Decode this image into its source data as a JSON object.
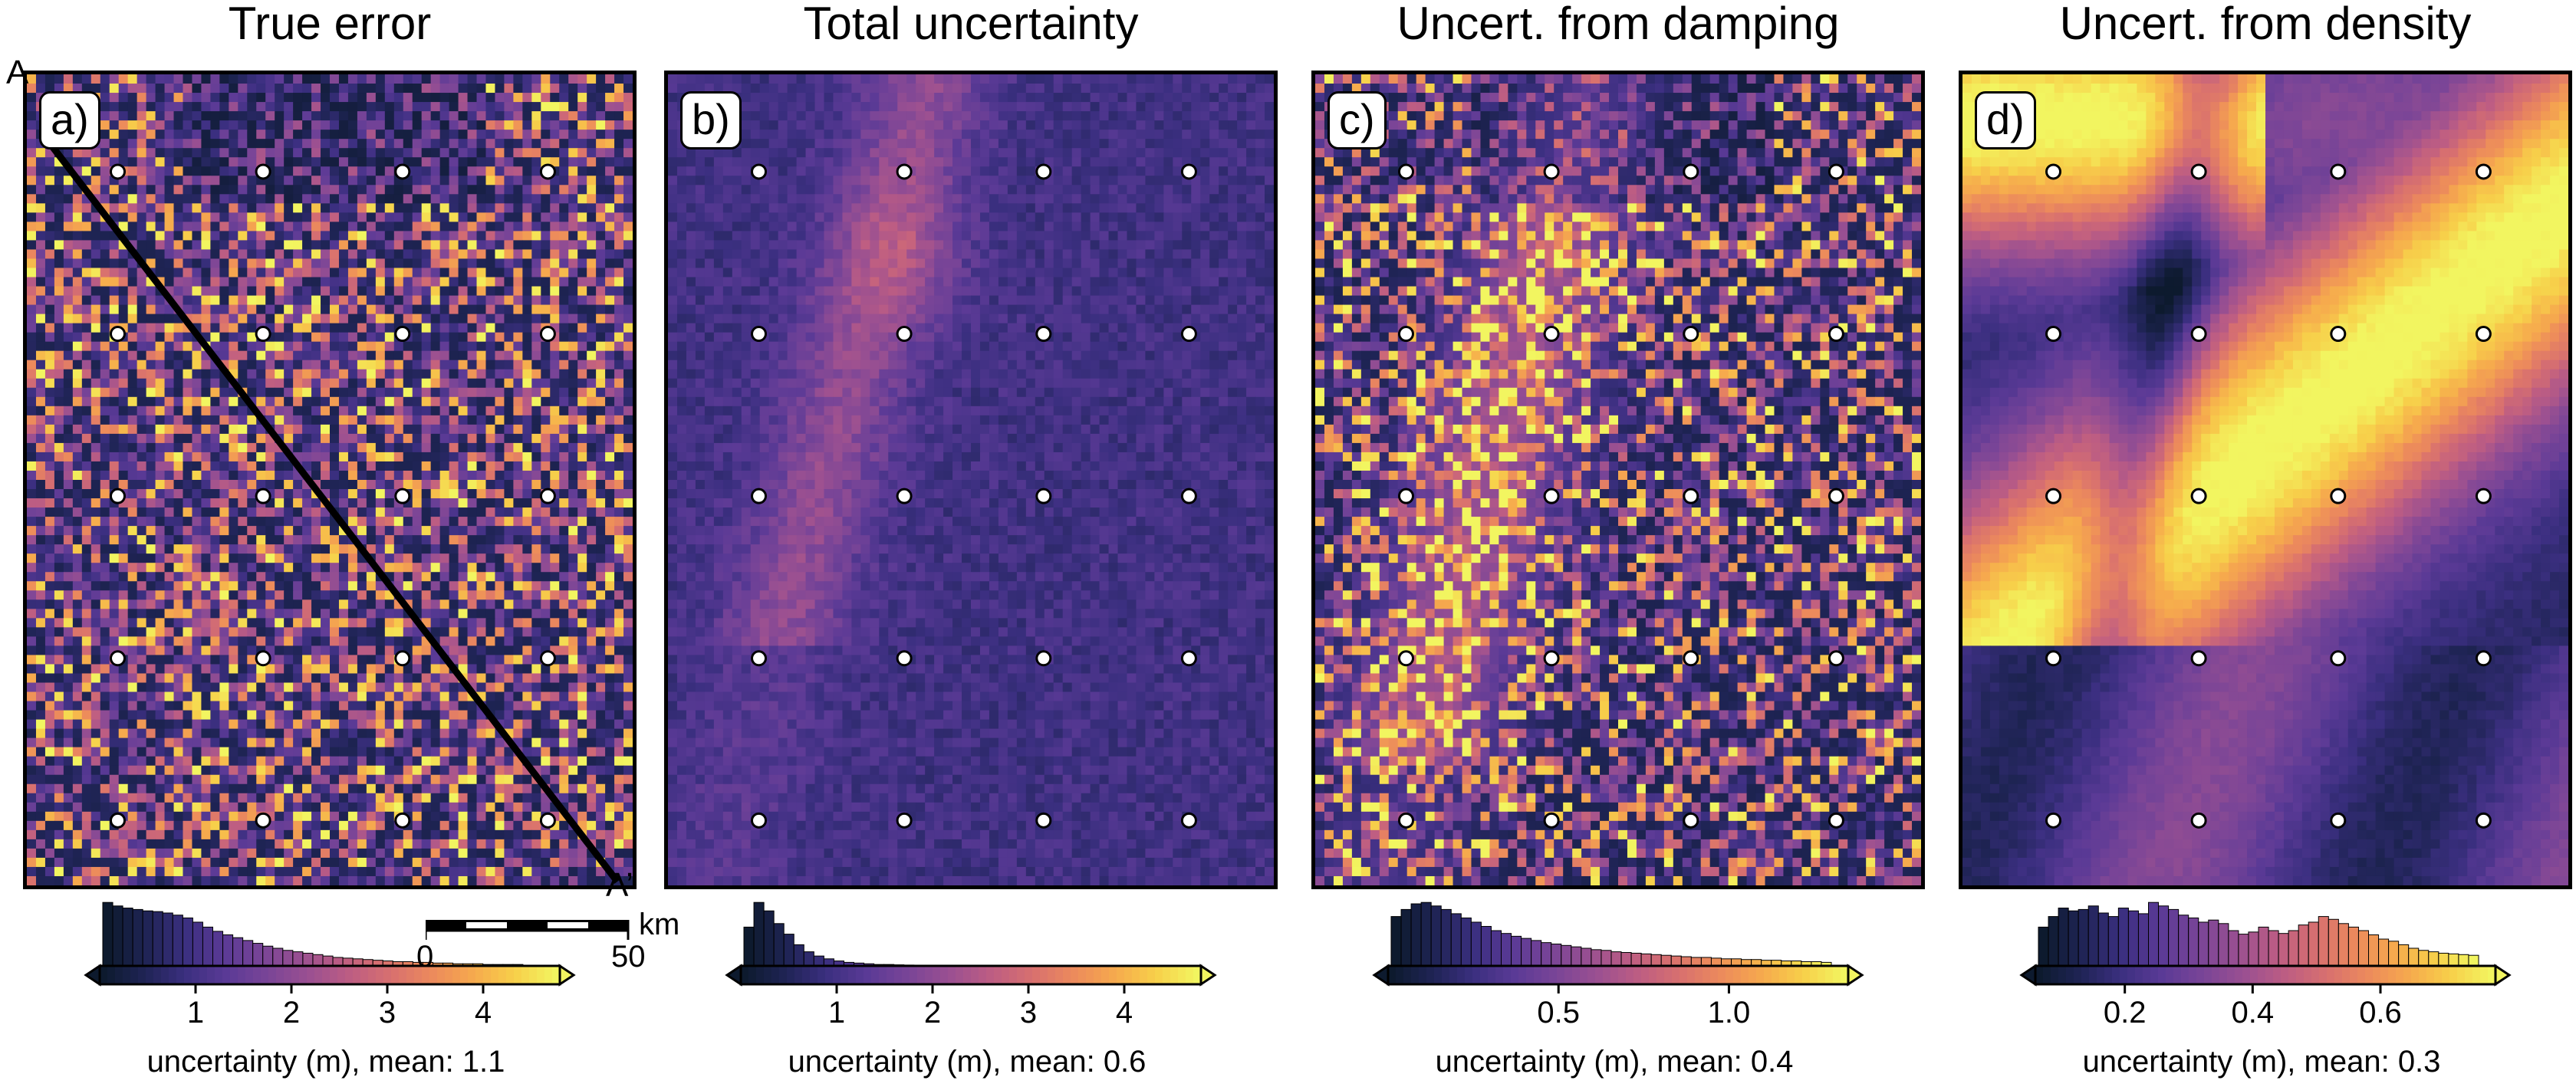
{
  "panels": [
    {
      "title": "True error",
      "tag": "a)",
      "colorbar_label": "uncertainty (m), mean: 1.1",
      "ticks": [
        "1",
        "2",
        "3",
        "4"
      ],
      "tick_values": [
        1,
        2,
        3,
        4
      ],
      "range": [
        0,
        4.8
      ],
      "seed": 11,
      "style": "noise",
      "hist": [
        0.9,
        0.85,
        0.82,
        0.8,
        0.78,
        0.77,
        0.75,
        0.72,
        0.68,
        0.62,
        0.55,
        0.49,
        0.44,
        0.4,
        0.36,
        0.32,
        0.28,
        0.25,
        0.22,
        0.2,
        0.18,
        0.16,
        0.14,
        0.12,
        0.11,
        0.1,
        0.09,
        0.08,
        0.07,
        0.06,
        0.06,
        0.05,
        0.05,
        0.04,
        0.04,
        0.03,
        0.03,
        0.03,
        0.02,
        0.02,
        0.02,
        0.02,
        0.01,
        0.01
      ]
    },
    {
      "title": "Total uncertainty",
      "tag": "b)",
      "colorbar_label": "uncertainty (m), mean: 0.6",
      "ticks": [
        "1",
        "2",
        "3",
        "4"
      ],
      "tick_values": [
        1,
        2,
        3,
        4
      ],
      "range": [
        0,
        4.8
      ],
      "seed": 23,
      "style": "smooth-noise",
      "hist": [
        0.55,
        0.9,
        0.78,
        0.6,
        0.45,
        0.3,
        0.2,
        0.14,
        0.1,
        0.07,
        0.05,
        0.04,
        0.03,
        0.02,
        0.02,
        0.015,
        0.012,
        0.01,
        0.01,
        0.008,
        0.007,
        0.006,
        0.005,
        0.004,
        0.004,
        0.003,
        0.003,
        0.002,
        0.002,
        0.002,
        0.002,
        0.001,
        0.001,
        0.001,
        0.001,
        0.001,
        0.001,
        0.001,
        0.001,
        0.001,
        0.001,
        0.001,
        0.001,
        0.001
      ]
    },
    {
      "title": "Uncert. from damping",
      "tag": "c)",
      "colorbar_label": "uncertainty (m), mean: 0.4",
      "ticks": [
        "0.5",
        "1.0"
      ],
      "tick_values": [
        0.5,
        1.0
      ],
      "range": [
        0,
        1.35
      ],
      "seed": 37,
      "style": "noise",
      "hist": [
        0.7,
        0.8,
        0.88,
        0.9,
        0.85,
        0.8,
        0.74,
        0.68,
        0.62,
        0.56,
        0.5,
        0.46,
        0.42,
        0.39,
        0.36,
        0.33,
        0.31,
        0.29,
        0.27,
        0.25,
        0.23,
        0.22,
        0.2,
        0.19,
        0.18,
        0.17,
        0.16,
        0.15,
        0.14,
        0.13,
        0.12,
        0.12,
        0.11,
        0.1,
        0.1,
        0.09,
        0.09,
        0.08,
        0.08,
        0.07,
        0.07,
        0.06,
        0.06,
        0.05
      ]
    },
    {
      "title": "Uncert. from density",
      "tag": "d)",
      "colorbar_label": "uncertainty (m), mean: 0.3",
      "ticks": [
        "0.2",
        "0.4",
        "0.6"
      ],
      "tick_values": [
        0.2,
        0.4,
        0.6
      ],
      "range": [
        0.06,
        0.78
      ],
      "seed": 53,
      "style": "smooth",
      "hist": [
        0.55,
        0.7,
        0.82,
        0.78,
        0.8,
        0.85,
        0.75,
        0.7,
        0.82,
        0.78,
        0.74,
        0.9,
        0.85,
        0.8,
        0.72,
        0.68,
        0.62,
        0.65,
        0.6,
        0.5,
        0.45,
        0.48,
        0.55,
        0.5,
        0.46,
        0.5,
        0.58,
        0.62,
        0.7,
        0.66,
        0.6,
        0.55,
        0.5,
        0.44,
        0.38,
        0.35,
        0.3,
        0.25,
        0.22,
        0.2,
        0.18,
        0.17,
        0.16,
        0.15
      ]
    }
  ],
  "profile": {
    "start_label": "A",
    "end_label": "A’"
  },
  "scale_bar": {
    "start": "0",
    "end": "50",
    "unit": "km"
  },
  "colormap": [
    "#0d1a2e",
    "#1f2455",
    "#3b2f80",
    "#5b3a96",
    "#7a4597",
    "#9b5091",
    "#bd5d83",
    "#d8706f",
    "#ec8a5c",
    "#f6aa4d",
    "#f7cf4a",
    "#f2f560"
  ],
  "chart_data": [
    {
      "type": "heatmap",
      "title": "True error",
      "xlabel": "uncertainty (m), mean: 1.1",
      "tick_labels": [
        "1",
        "2",
        "3",
        "4"
      ],
      "range": [
        0,
        4.8
      ]
    },
    {
      "type": "heatmap",
      "title": "Total uncertainty",
      "xlabel": "uncertainty (m), mean: 0.6",
      "tick_labels": [
        "1",
        "2",
        "3",
        "4"
      ],
      "range": [
        0,
        4.8
      ]
    },
    {
      "type": "heatmap",
      "title": "Uncert. from damping",
      "xlabel": "uncertainty (m), mean: 0.4",
      "tick_labels": [
        "0.5",
        "1.0"
      ],
      "range": [
        0,
        1.35
      ]
    },
    {
      "type": "heatmap",
      "title": "Uncert. from density",
      "xlabel": "uncertainty (m), mean: 0.3",
      "tick_labels": [
        "0.2",
        "0.4",
        "0.6"
      ],
      "range": [
        0.06,
        0.78
      ]
    }
  ]
}
